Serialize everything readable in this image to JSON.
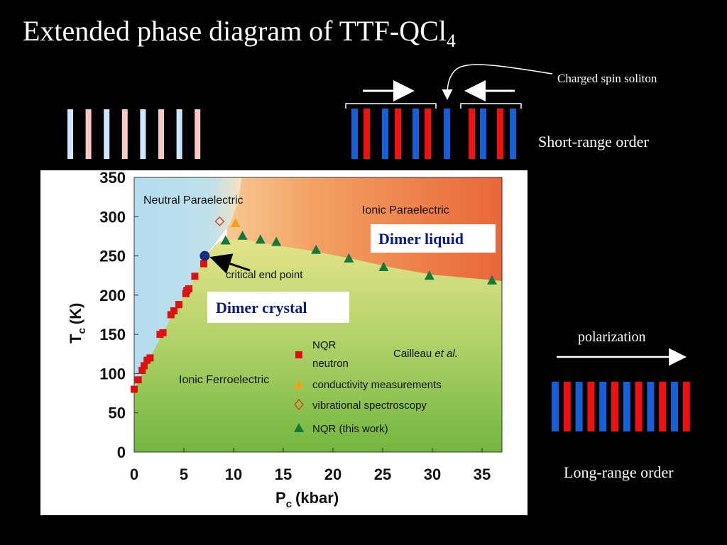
{
  "title": "Extended phase diagram of TTF-QCl",
  "title_sub": "4",
  "annotations": {
    "soliton": "Charged spin soliton",
    "short_range": "Short-range order",
    "polarization": "polarization",
    "long_range": "Long-range order",
    "dimer_liquid": "Dimer liquid",
    "dimer_crystal": "Dimer crystal"
  },
  "colors": {
    "blue": "#1560d8",
    "red": "#ee1111",
    "pale_blue": "#cfe6ff",
    "pale_red": "#f8c8c8",
    "nqr_square": "#dd1111",
    "conductivity": "#f2a020",
    "nqr_triangle": "#117a3a",
    "critical_point": "#1c2a80"
  },
  "chart_data": {
    "type": "scatter",
    "xlabel": "P",
    "xlabel_sub": "c",
    "xlabel_unit": "(kbar)",
    "ylabel": "T",
    "ylabel_sub": "c",
    "ylabel_unit": "(K)",
    "xlim": [
      0,
      37
    ],
    "ylim": [
      0,
      350
    ],
    "xticks": [
      0,
      5,
      10,
      15,
      20,
      25,
      30,
      35
    ],
    "yticks": [
      0,
      50,
      100,
      150,
      200,
      250,
      300,
      350
    ],
    "regions": {
      "neutral": "Neutral Paraelectric",
      "ionic_para": "Ionic Paraelectric",
      "ionic_ferro": "Ionic Ferroelectric",
      "critical": "critical end point"
    },
    "reference": "Cailleau et al.",
    "legend": [
      {
        "label": "NQR",
        "marker": "square"
      },
      {
        "label": "neutron",
        "marker": "none"
      },
      {
        "label": "conductivity measurements",
        "marker": "triangle-orange"
      },
      {
        "label": "vibrational spectroscopy",
        "marker": "diamond-open"
      },
      {
        "label": "NQR (this work)",
        "marker": "triangle-green"
      }
    ],
    "series": [
      {
        "marker": "square",
        "points": [
          [
            0,
            80
          ],
          [
            0.4,
            92
          ],
          [
            0.8,
            104
          ],
          [
            1.0,
            110
          ],
          [
            1.3,
            117
          ],
          [
            1.6,
            120
          ],
          [
            2.6,
            150
          ],
          [
            2.9,
            152
          ],
          [
            3.7,
            175
          ],
          [
            4.0,
            180
          ],
          [
            4.5,
            188
          ],
          [
            5.2,
            202
          ],
          [
            5.3,
            206
          ],
          [
            5.5,
            208
          ],
          [
            6.1,
            224
          ],
          [
            7.0,
            240
          ]
        ]
      },
      {
        "marker": "triangle-orange",
        "points": [
          [
            10.2,
            292
          ]
        ]
      },
      {
        "marker": "diamond-open",
        "points": [
          [
            8.6,
            294
          ]
        ]
      },
      {
        "marker": "triangle-green",
        "points": [
          [
            9.2,
            270
          ],
          [
            10.9,
            276
          ],
          [
            12.7,
            271
          ],
          [
            14.3,
            268
          ],
          [
            18.3,
            258
          ],
          [
            21.6,
            247
          ],
          [
            25.1,
            236
          ],
          [
            29.7,
            225
          ],
          [
            36.0,
            219
          ]
        ]
      },
      {
        "marker": "circle",
        "points": [
          [
            7.1,
            250
          ]
        ]
      }
    ]
  }
}
